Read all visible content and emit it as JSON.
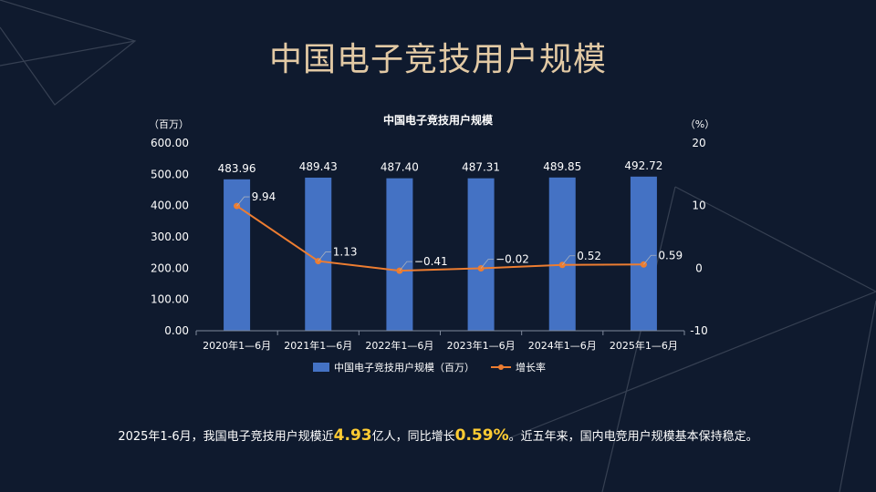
{
  "slide": {
    "title": "中国电子竞技用户规模"
  },
  "chart_data": {
    "type": "bar",
    "title": "中国电子竞技用户规模",
    "categories": [
      "2020年1—6月",
      "2021年1—6月",
      "2022年1—6月",
      "2023年1—6月",
      "2024年1—6月",
      "2025年1—6月"
    ],
    "series": [
      {
        "name": "中国电子竞技用户规模（百万）",
        "type": "bar",
        "axis": "left",
        "values": [
          483.96,
          489.43,
          487.4,
          487.31,
          489.85,
          492.72
        ],
        "labels": [
          "483.96",
          "489.43",
          "487.40",
          "487.31",
          "489.85",
          "492.72"
        ],
        "color": "#4472c4"
      },
      {
        "name": "增长率",
        "type": "line",
        "axis": "right",
        "values": [
          9.94,
          1.13,
          -0.41,
          -0.02,
          0.52,
          0.59
        ],
        "labels": [
          "9.94",
          "1.13",
          "−0.41",
          "−0.02",
          "0.52",
          "0.59"
        ],
        "color": "#ed7d31"
      }
    ],
    "y_left": {
      "unit_label": "（百万）",
      "range": [
        0,
        600
      ],
      "ticks": [
        "600.00",
        "500.00",
        "400.00",
        "300.00",
        "200.00",
        "100.00",
        "0.00"
      ],
      "tick_values": [
        600,
        500,
        400,
        300,
        200,
        100,
        0
      ]
    },
    "y_right": {
      "unit_label": "（%）",
      "range": [
        -10,
        20
      ],
      "ticks": [
        "20",
        "10",
        "0",
        "-10"
      ],
      "tick_values": [
        20,
        10,
        0,
        -10
      ]
    },
    "legend_position": "bottom",
    "grid": false
  },
  "summary": {
    "part1": "2025年1-6月，我国电子竞技用户规模近",
    "highlight1": "4.93",
    "part2": "亿人，同比增长",
    "highlight2": "0.59%",
    "part3": "。近五年来，国内电竞用户规模基本保持稳定。"
  },
  "colors": {
    "background": "#0f1a2e",
    "title": "#e2c9a4",
    "highlight": "#ffcc33",
    "bar": "#4472c4",
    "line": "#ed7d31"
  }
}
